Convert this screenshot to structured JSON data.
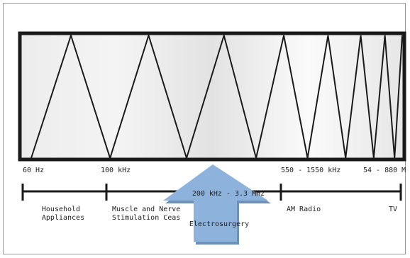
{
  "frequency_labels": {
    "hz60": "60 Hz",
    "khz100": "100 kHz",
    "am_range": "550 - 1550 kHz",
    "tv_range": "54 - 880 M"
  },
  "arrow": {
    "range": "200 kHz - 3.3 MHz",
    "label": "Electrosurgery"
  },
  "categories": {
    "household_1": "Household",
    "household_2": "Appliances",
    "muscle_1": "Muscle and Nerve",
    "muscle_2": "Stimulation Ceas",
    "am_radio": "AM Radio",
    "tv": "TV"
  },
  "colors": {
    "box_border": "#1a1a1a",
    "wave": "#1a1a1a",
    "gradient_light": "#ffffff",
    "gradient_mid": "#e3e3e3",
    "arrow_fill": "#8db2dc",
    "arrow_shadow": "#6f90b8"
  }
}
